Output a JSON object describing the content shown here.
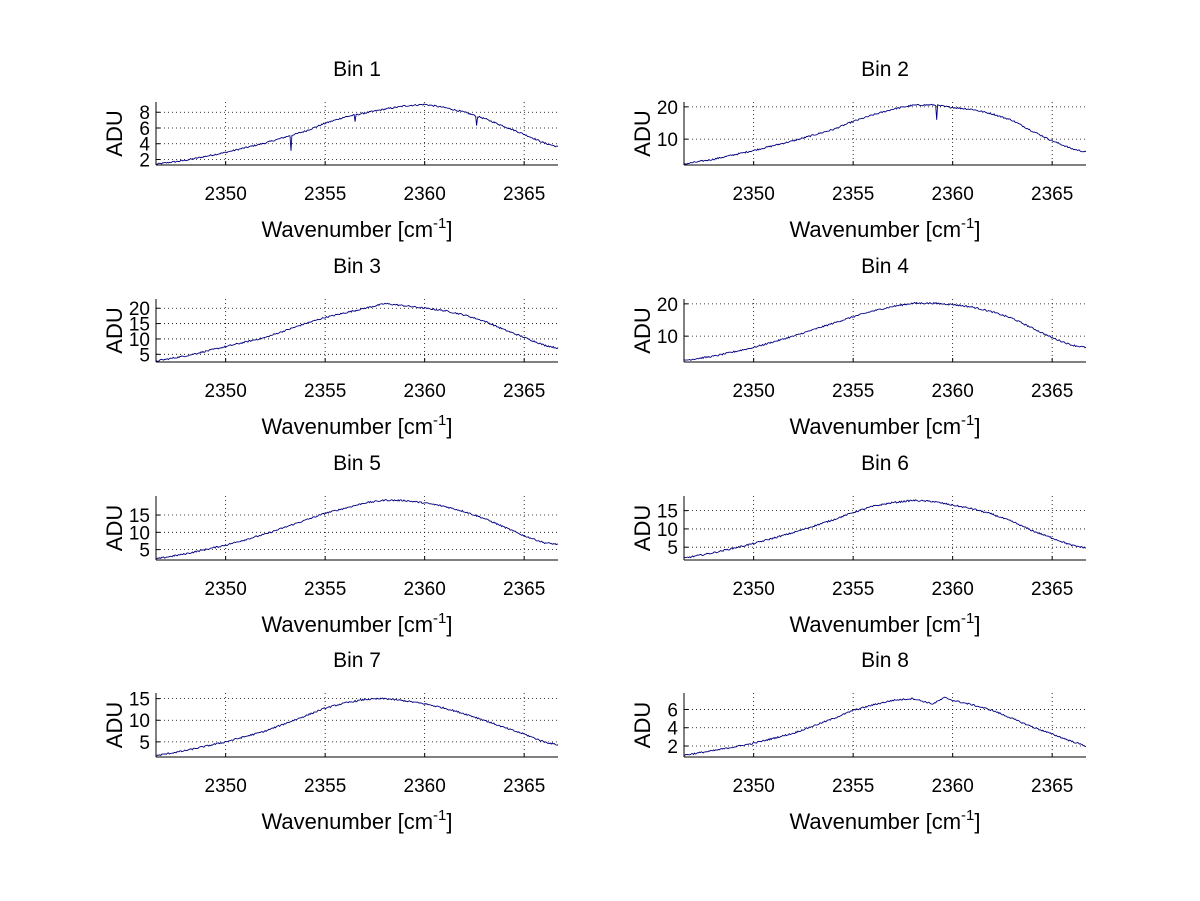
{
  "figure": {
    "background": "#ffffff",
    "line_color": "#000080"
  },
  "chart_data": [
    {
      "type": "line",
      "title": "Bin 1",
      "xlabel": "Wavenumber [cm",
      "xlabel_sup": "-1",
      "xlabel_end": "]",
      "ylabel": "ADU",
      "xlim": [
        2346.5,
        2366.7
      ],
      "ylim": [
        1.3,
        9.3
      ],
      "xticks": [
        2350,
        2355,
        2360,
        2365
      ],
      "yticks": [
        2,
        4,
        6,
        8
      ],
      "grid": true,
      "series": [
        {
          "name": "Bin 1",
          "color": "#000080",
          "x": [
            2346.5,
            2348,
            2350,
            2352,
            2354,
            2355,
            2356,
            2357,
            2358,
            2359,
            2360,
            2361,
            2362,
            2363,
            2364,
            2365,
            2366,
            2366.7
          ],
          "y": [
            1.4,
            1.9,
            2.9,
            4.1,
            5.6,
            6.6,
            7.4,
            7.9,
            8.4,
            8.8,
            9.0,
            8.6,
            8.0,
            7.2,
            6.2,
            5.2,
            4.1,
            3.6
          ],
          "dips": [
            [
              2353.3,
              3.1
            ],
            [
              2356.5,
              6.8
            ],
            [
              2362.6,
              6.3
            ]
          ]
        }
      ]
    },
    {
      "type": "line",
      "title": "Bin 2",
      "xlabel": "Wavenumber [cm",
      "xlabel_sup": "-1",
      "xlabel_end": "]",
      "ylabel": "ADU",
      "xlim": [
        2346.5,
        2366.7
      ],
      "ylim": [
        2,
        21.5
      ],
      "xticks": [
        2350,
        2355,
        2360,
        2365
      ],
      "yticks": [
        10,
        20
      ],
      "grid": true,
      "series": [
        {
          "name": "Bin 2",
          "color": "#000080",
          "x": [
            2346.5,
            2348,
            2350,
            2352,
            2354,
            2355,
            2356,
            2357,
            2358,
            2359,
            2360,
            2361,
            2362,
            2363,
            2364,
            2365,
            2366,
            2366.7
          ],
          "y": [
            2.3,
            3.8,
            6.5,
            9.5,
            13.0,
            15.5,
            17.5,
            19.3,
            20.5,
            20.6,
            19.8,
            19.2,
            17.8,
            15.8,
            12.5,
            9.5,
            7.0,
            6.0
          ],
          "dips": [
            [
              2359.2,
              16.0
            ]
          ]
        }
      ]
    },
    {
      "type": "line",
      "title": "Bin 3",
      "xlabel": "Wavenumber [cm",
      "xlabel_sup": "-1",
      "xlabel_end": "]",
      "ylabel": "ADU",
      "xlim": [
        2346.5,
        2366.7
      ],
      "ylim": [
        2.5,
        23
      ],
      "xticks": [
        2350,
        2355,
        2360,
        2365
      ],
      "yticks": [
        5,
        10,
        15,
        20
      ],
      "grid": true,
      "series": [
        {
          "name": "Bin 3",
          "color": "#000080",
          "x": [
            2346.5,
            2348,
            2350,
            2352,
            2354,
            2355,
            2356,
            2357,
            2358,
            2359,
            2360,
            2361,
            2362,
            2363,
            2364,
            2365,
            2366,
            2366.7
          ],
          "y": [
            2.8,
            4.5,
            7.5,
            10.5,
            15.0,
            17.0,
            18.5,
            20.0,
            21.5,
            20.8,
            20.0,
            19.2,
            17.8,
            15.8,
            13.0,
            10.5,
            8.0,
            7.0
          ],
          "dips": []
        }
      ]
    },
    {
      "type": "line",
      "title": "Bin 4",
      "xlabel": "Wavenumber [cm",
      "xlabel_sup": "-1",
      "xlabel_end": "]",
      "ylabel": "ADU",
      "xlim": [
        2346.5,
        2366.7
      ],
      "ylim": [
        2,
        21.5
      ],
      "xticks": [
        2350,
        2355,
        2360,
        2365
      ],
      "yticks": [
        10,
        20
      ],
      "grid": true,
      "series": [
        {
          "name": "Bin 4",
          "color": "#000080",
          "x": [
            2346.5,
            2348,
            2350,
            2352,
            2354,
            2355,
            2356,
            2357,
            2358,
            2359,
            2360,
            2361,
            2362,
            2363,
            2364,
            2365,
            2366,
            2366.7
          ],
          "y": [
            2.5,
            3.8,
            6.5,
            10.0,
            14.0,
            16.0,
            17.8,
            19.2,
            20.2,
            20.2,
            19.8,
            19.0,
            17.5,
            15.5,
            12.5,
            9.5,
            7.2,
            6.5
          ],
          "dips": []
        }
      ]
    },
    {
      "type": "line",
      "title": "Bin 5",
      "xlabel": "Wavenumber [cm",
      "xlabel_sup": "-1",
      "xlabel_end": "]",
      "ylabel": "ADU",
      "xlim": [
        2346.5,
        2366.7
      ],
      "ylim": [
        2,
        20.5
      ],
      "xticks": [
        2350,
        2355,
        2360,
        2365
      ],
      "yticks": [
        5,
        10,
        15
      ],
      "grid": true,
      "series": [
        {
          "name": "Bin 5",
          "color": "#000080",
          "x": [
            2346.5,
            2348,
            2350,
            2352,
            2354,
            2355,
            2356,
            2357,
            2358,
            2359,
            2360,
            2361,
            2362,
            2363,
            2364,
            2365,
            2366,
            2366.7
          ],
          "y": [
            2.3,
            3.8,
            6.3,
            9.5,
            13.5,
            15.5,
            17.0,
            18.5,
            19.3,
            19.2,
            18.5,
            17.5,
            16.0,
            14.0,
            11.5,
            9.0,
            7.0,
            6.5
          ],
          "dips": []
        }
      ]
    },
    {
      "type": "line",
      "title": "Bin 6",
      "xlabel": "Wavenumber [cm",
      "xlabel_sup": "-1",
      "xlabel_end": "]",
      "ylabel": "ADU",
      "xlim": [
        2346.5,
        2366.7
      ],
      "ylim": [
        1.5,
        19
      ],
      "xticks": [
        2350,
        2355,
        2360,
        2365
      ],
      "yticks": [
        5,
        10,
        15
      ],
      "grid": true,
      "series": [
        {
          "name": "Bin 6",
          "color": "#000080",
          "x": [
            2346.5,
            2348,
            2350,
            2352,
            2354,
            2355,
            2356,
            2357,
            2358,
            2359,
            2360,
            2361,
            2362,
            2363,
            2364,
            2365,
            2366,
            2366.7
          ],
          "y": [
            2.0,
            3.5,
            6.0,
            9.0,
            12.5,
            14.5,
            16.2,
            17.2,
            17.8,
            17.5,
            16.5,
            15.5,
            14.0,
            12.0,
            9.5,
            7.5,
            5.5,
            4.8
          ],
          "dips": []
        }
      ]
    },
    {
      "type": "line",
      "title": "Bin 7",
      "xlabel": "Wavenumber [cm",
      "xlabel_sup": "-1",
      "xlabel_end": "]",
      "ylabel": "ADU",
      "xlim": [
        2346.5,
        2366.7
      ],
      "ylim": [
        1.5,
        16.3
      ],
      "xticks": [
        2350,
        2355,
        2360,
        2365
      ],
      "yticks": [
        5,
        10,
        15
      ],
      "grid": true,
      "series": [
        {
          "name": "Bin 7",
          "color": "#000080",
          "x": [
            2346.5,
            2348,
            2350,
            2352,
            2354,
            2355,
            2356,
            2357,
            2358,
            2359,
            2360,
            2361,
            2362,
            2363,
            2364,
            2365,
            2366,
            2366.7
          ],
          "y": [
            1.8,
            3.0,
            5.0,
            7.5,
            11.0,
            12.8,
            14.0,
            14.8,
            15.0,
            14.5,
            13.8,
            12.8,
            11.5,
            10.0,
            8.3,
            6.8,
            5.0,
            4.3
          ],
          "dips": []
        }
      ]
    },
    {
      "type": "line",
      "title": "Bin 8",
      "xlabel": "Wavenumber [cm",
      "xlabel_sup": "-1",
      "xlabel_end": "]",
      "ylabel": "ADU",
      "xlim": [
        2346.5,
        2366.7
      ],
      "ylim": [
        0.8,
        7.8
      ],
      "xticks": [
        2350,
        2355,
        2360,
        2365
      ],
      "yticks": [
        2,
        4,
        6
      ],
      "grid": true,
      "series": [
        {
          "name": "Bin 8",
          "color": "#000080",
          "x": [
            2346.5,
            2348,
            2350,
            2352,
            2354,
            2355,
            2356,
            2357,
            2358,
            2359,
            2359.6,
            2360,
            2361,
            2362,
            2363,
            2364,
            2365,
            2366,
            2366.7
          ],
          "y": [
            1.0,
            1.5,
            2.3,
            3.4,
            5.0,
            5.9,
            6.5,
            7.0,
            7.2,
            6.6,
            7.3,
            7.0,
            6.5,
            5.9,
            5.0,
            4.1,
            3.3,
            2.5,
            2.0
          ],
          "dips": []
        }
      ]
    }
  ]
}
